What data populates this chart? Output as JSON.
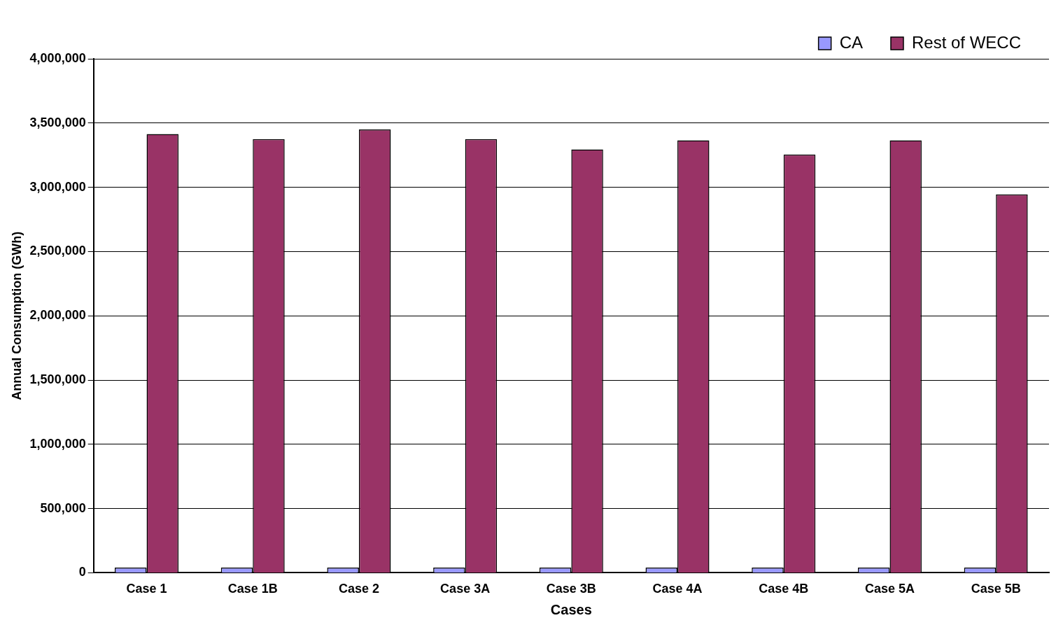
{
  "chart_data": {
    "type": "bar",
    "xlabel": "Cases",
    "ylabel": "Annual Consumption (GWh)",
    "categories": [
      "Case 1",
      "Case 1B",
      "Case 2",
      "Case 3A",
      "Case 3B",
      "Case 4A",
      "Case 4B",
      "Case 5A",
      "Case 5B"
    ],
    "series": [
      {
        "name": "CA",
        "color": "#9999ff",
        "values": [
          40000,
          40000,
          40000,
          40000,
          40000,
          40000,
          40000,
          40000,
          40000
        ]
      },
      {
        "name": "Rest of WECC",
        "color": "#993366",
        "values": [
          3415000,
          3375000,
          3450000,
          3375000,
          3295000,
          3365000,
          3255000,
          3365000,
          2945000
        ]
      }
    ],
    "ylim": [
      0,
      4000000
    ],
    "yticks": [
      0,
      {
        "value": 500000,
        "label": "500,000"
      },
      {
        "value": 1000000,
        "label": "1,000,000"
      },
      {
        "value": 1500000,
        "label": "1,500,000"
      },
      {
        "value": 2000000,
        "label": "2,000,000"
      },
      {
        "value": 2500000,
        "label": "2,500,000"
      },
      {
        "value": 3000000,
        "label": "3,000,000"
      },
      {
        "value": 3500000,
        "label": "3,500,000"
      },
      {
        "value": 4000000,
        "label": "4,000,000"
      }
    ],
    "grid": "y",
    "legend": "top right"
  }
}
